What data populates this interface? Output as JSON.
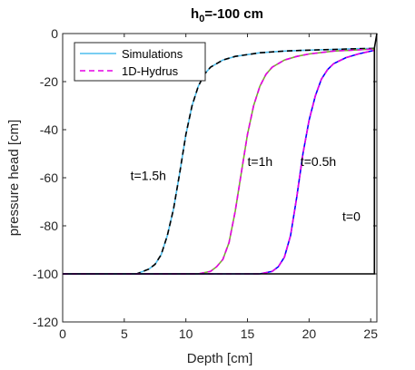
{
  "chart_data": {
    "type": "line",
    "title_main": "h",
    "title_sub": "0",
    "title_rest": "=-100 cm",
    "xlabel": "Depth [cm]",
    "ylabel": "pressure head [cm]",
    "xlim": [
      0,
      25.5
    ],
    "ylim": [
      -120,
      0
    ],
    "xticks": [
      0,
      5,
      10,
      15,
      20,
      25
    ],
    "yticks": [
      0,
      -20,
      -40,
      -60,
      -80,
      -100,
      -120
    ],
    "grid": false,
    "legend_position": "top-left",
    "legend": [
      {
        "name": "Simulations",
        "color": "#4DBEEE",
        "style": "solid"
      },
      {
        "name": "1D-Hydrus",
        "color": "#E600E6",
        "style": "dashed"
      }
    ],
    "series": [
      {
        "label": "t=1.5h",
        "color_sim": "#4DBEEE",
        "color_hydrus": "#000000",
        "x": [
          0,
          6,
          7,
          7.5,
          8,
          8.5,
          9,
          9.5,
          10,
          10.5,
          11,
          11.5,
          12,
          13,
          14,
          16,
          18,
          20,
          22,
          24,
          25.3
        ],
        "y": [
          -100,
          -100,
          -98,
          -96,
          -92,
          -84,
          -73,
          -58,
          -42,
          -30,
          -22,
          -17,
          -14,
          -11,
          -9.5,
          -8,
          -7.3,
          -6.9,
          -6.6,
          -6.3,
          -6.2
        ]
      },
      {
        "label": "t=1h",
        "color_sim": "#77AC30",
        "color_hydrus": "#E600E6",
        "x": [
          0,
          11,
          12,
          12.5,
          13,
          13.5,
          14,
          14.5,
          15,
          15.5,
          16,
          16.5,
          17,
          18,
          19,
          20,
          22,
          24,
          25.3
        ],
        "y": [
          -100,
          -100,
          -99,
          -97,
          -94,
          -87,
          -74,
          -58,
          -42,
          -30,
          -22,
          -17,
          -14,
          -11,
          -9.5,
          -8.5,
          -7.3,
          -6.8,
          -6.4
        ]
      },
      {
        "label": "t=0.5h",
        "color_sim": "#0000FF",
        "color_hydrus": "#E600E6",
        "x": [
          0,
          16,
          17,
          17.5,
          18,
          18.5,
          19,
          19.5,
          20,
          20.5,
          21,
          21.5,
          22,
          23,
          24,
          25.3
        ],
        "y": [
          -100,
          -100,
          -99,
          -97,
          -93,
          -84,
          -68,
          -50,
          -36,
          -26,
          -19,
          -15,
          -12.5,
          -10,
          -8.5,
          -7
        ]
      },
      {
        "label": "t=0",
        "color_sim": "#000000",
        "color_hydrus": "#000000",
        "x": [
          0,
          25.3,
          25.3,
          25.5
        ],
        "y": [
          -100,
          -100,
          -6,
          0
        ]
      }
    ],
    "annotations": [
      {
        "text": "t=1.5h",
        "x": 5.5,
        "y": -61
      },
      {
        "text": "t=1h",
        "x": 15.0,
        "y": -55
      },
      {
        "text": "t=0.5h",
        "x": 19.3,
        "y": -55
      },
      {
        "text": "t=0",
        "x": 22.7,
        "y": -78
      }
    ]
  }
}
